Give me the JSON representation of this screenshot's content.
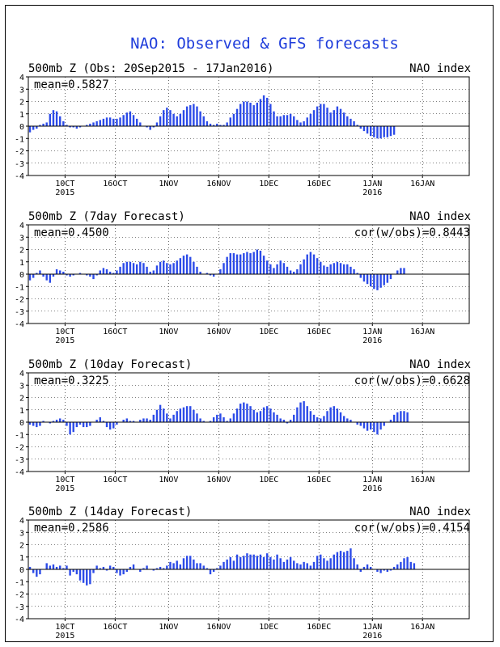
{
  "title": "NAO: Observed & GFS forecasts",
  "colors": {
    "bar": "#2c4be8",
    "title": "#1f3ddb",
    "grid": "#000000",
    "axis": "#000000"
  },
  "chart_data": [
    {
      "type": "bar",
      "panel_title": "500mb Z (Obs: 20Sep2015 - 17Jan2016)",
      "index_label": "NAO index",
      "mean_label": "mean=0.5827",
      "cor_label": "",
      "ylim": [
        -4,
        4
      ],
      "yticks": [
        "4",
        "3",
        "2",
        "1",
        "0",
        "-1",
        "-2",
        "-3",
        "-4"
      ],
      "x_start": "2015-09-20",
      "x_end": "2016-01-30",
      "xticks": [
        {
          "date": "2015-10-01",
          "label": "10CT",
          "sub": "2015"
        },
        {
          "date": "2015-10-16",
          "label": "16OCT",
          "sub": ""
        },
        {
          "date": "2015-11-01",
          "label": "1NOV",
          "sub": ""
        },
        {
          "date": "2015-11-16",
          "label": "16NOV",
          "sub": ""
        },
        {
          "date": "2015-12-01",
          "label": "1DEC",
          "sub": ""
        },
        {
          "date": "2015-12-16",
          "label": "16DEC",
          "sub": ""
        },
        {
          "date": "2016-01-01",
          "label": "1JAN",
          "sub": "2016"
        },
        {
          "date": "2016-01-16",
          "label": "16JAN",
          "sub": ""
        }
      ],
      "values": [
        -0.5,
        -0.3,
        -0.2,
        0.1,
        0.2,
        0.3,
        1,
        1.3,
        1.2,
        0.8,
        0.4,
        0.1,
        -0.1,
        -0.1,
        -0.2,
        -0.1,
        0,
        0.1,
        0.2,
        0.3,
        0.4,
        0.5,
        0.6,
        0.7,
        0.7,
        0.6,
        0.6,
        0.7,
        0.9,
        1.1,
        1.2,
        0.9,
        0.6,
        0.3,
        0,
        -0.1,
        -0.3,
        -0.1,
        0.3,
        0.8,
        1.3,
        1.5,
        1.3,
        1,
        0.8,
        1,
        1.3,
        1.6,
        1.7,
        1.8,
        1.6,
        1.2,
        0.8,
        0.4,
        0.2,
        0.1,
        0.2,
        0.1,
        0.1,
        0.3,
        0.7,
        1,
        1.4,
        1.8,
        2,
        2,
        1.9,
        1.7,
        1.9,
        2.2,
        2.5,
        2.3,
        1.8,
        1.2,
        0.8,
        0.8,
        0.9,
        0.9,
        1,
        0.8,
        0.5,
        0.3,
        0.4,
        0.7,
        1,
        1.3,
        1.6,
        1.8,
        1.8,
        1.5,
        1.1,
        1.3,
        1.6,
        1.4,
        1.1,
        0.8,
        0.6,
        0.4,
        0.1,
        -0.2,
        -0.4,
        -0.6,
        -0.8,
        -0.9,
        -1,
        -1,
        -0.9,
        -0.9,
        -0.8,
        -0.7
      ]
    },
    {
      "type": "bar",
      "panel_title": "500mb Z (7day Forecast)",
      "index_label": "NAO index",
      "mean_label": "mean=0.4500",
      "cor_label": "cor(w/obs)=0.8443",
      "ylim": [
        -4,
        4
      ],
      "yticks": [
        "4",
        "3",
        "2",
        "1",
        "0",
        "-1",
        "-2",
        "-3",
        "-4"
      ],
      "x_start": "2015-09-20",
      "x_end": "2016-01-30",
      "xticks": [
        {
          "date": "2015-10-01",
          "label": "10CT",
          "sub": "2015"
        },
        {
          "date": "2015-10-16",
          "label": "16OCT",
          "sub": ""
        },
        {
          "date": "2015-11-01",
          "label": "1NOV",
          "sub": ""
        },
        {
          "date": "2015-11-16",
          "label": "16NOV",
          "sub": ""
        },
        {
          "date": "2015-12-01",
          "label": "1DEC",
          "sub": ""
        },
        {
          "date": "2015-12-16",
          "label": "16DEC",
          "sub": ""
        },
        {
          "date": "2016-01-01",
          "label": "1JAN",
          "sub": "2016"
        },
        {
          "date": "2016-01-16",
          "label": "16JAN",
          "sub": ""
        }
      ],
      "values": [
        -0.5,
        -0.3,
        0.1,
        0.3,
        -0.2,
        -0.5,
        -0.7,
        -0.2,
        0.4,
        0.3,
        0.2,
        -0.1,
        -0.2,
        -0.1,
        0,
        0.1,
        0,
        -0.1,
        -0.2,
        -0.4,
        -0.1,
        0.3,
        0.5,
        0.4,
        0.2,
        0.1,
        0.3,
        0.6,
        0.9,
        1,
        1,
        0.9,
        0.8,
        1,
        0.9,
        0.6,
        0.2,
        0.3,
        0.7,
        1,
        1.1,
        0.9,
        0.8,
        0.9,
        1.1,
        1.3,
        1.5,
        1.6,
        1.4,
        1,
        0.6,
        0.2,
        0,
        0.1,
        -0.1,
        -0.2,
        0,
        0.4,
        0.9,
        1.4,
        1.7,
        1.7,
        1.6,
        1.6,
        1.7,
        1.8,
        1.7,
        1.8,
        2,
        1.9,
        1.5,
        1.1,
        0.8,
        0.5,
        0.8,
        1.1,
        0.9,
        0.6,
        0.3,
        0.2,
        0.4,
        0.8,
        1.2,
        1.6,
        1.8,
        1.6,
        1.3,
        1,
        0.7,
        0.6,
        0.8,
        0.9,
        1,
        0.9,
        0.8,
        0.8,
        0.6,
        0.4,
        0.1,
        -0.3,
        -0.6,
        -0.8,
        -1,
        -1.2,
        -1.3,
        -1.1,
        -0.9,
        -0.7,
        -0.4,
        0,
        0.3,
        0.5,
        0.5
      ]
    },
    {
      "type": "bar",
      "panel_title": "500mb Z (10day Forecast)",
      "index_label": "NAO index",
      "mean_label": "mean=0.3225",
      "cor_label": "cor(w/obs)=0.6628",
      "ylim": [
        -4,
        4
      ],
      "yticks": [
        "4",
        "3",
        "2",
        "1",
        "0",
        "-1",
        "-2",
        "-3",
        "-4"
      ],
      "x_start": "2015-09-20",
      "x_end": "2016-01-30",
      "xticks": [
        {
          "date": "2015-10-01",
          "label": "10CT",
          "sub": "2015"
        },
        {
          "date": "2015-10-16",
          "label": "16OCT",
          "sub": ""
        },
        {
          "date": "2015-11-01",
          "label": "1NOV",
          "sub": ""
        },
        {
          "date": "2015-11-16",
          "label": "16NOV",
          "sub": ""
        },
        {
          "date": "2015-12-01",
          "label": "1DEC",
          "sub": ""
        },
        {
          "date": "2015-12-16",
          "label": "16DEC",
          "sub": ""
        },
        {
          "date": "2016-01-01",
          "label": "1JAN",
          "sub": "2016"
        },
        {
          "date": "2016-01-16",
          "label": "16JAN",
          "sub": ""
        }
      ],
      "values": [
        -0.2,
        -0.3,
        -0.4,
        -0.3,
        0.1,
        0,
        -0.1,
        0.1,
        0.2,
        0.3,
        0.2,
        -0.3,
        -1,
        -0.8,
        -0.4,
        -0.2,
        -0.4,
        -0.4,
        -0.3,
        0,
        0.2,
        0.4,
        0.1,
        -0.4,
        -0.6,
        -0.5,
        -0.2,
        0,
        0.2,
        0.3,
        0.1,
        0.1,
        0,
        0.2,
        0.3,
        0.3,
        0.2,
        0.6,
        1,
        1.4,
        1.1,
        0.7,
        0.3,
        0.6,
        0.9,
        1.1,
        1.2,
        1.3,
        1.3,
        1,
        0.7,
        0.3,
        0.1,
        0,
        0.1,
        0.4,
        0.6,
        0.7,
        0.4,
        0.1,
        0.3,
        0.7,
        1.1,
        1.5,
        1.6,
        1.5,
        1.3,
        1,
        0.8,
        0.9,
        1.2,
        1.3,
        1.1,
        0.8,
        0.6,
        0.3,
        0.2,
        -0.1,
        0.2,
        0.6,
        1.2,
        1.6,
        1.7,
        1.3,
        0.9,
        0.6,
        0.4,
        0.3,
        0.5,
        0.9,
        1.2,
        1.3,
        1.1,
        0.8,
        0.5,
        0.3,
        0.2,
        0,
        -0.2,
        -0.3,
        -0.5,
        -0.7,
        -0.6,
        -0.8,
        -1,
        -0.6,
        -0.3,
        0,
        0.2,
        0.6,
        0.8,
        0.9,
        0.9,
        0.8
      ]
    },
    {
      "type": "bar",
      "panel_title": "500mb Z (14day Forecast)",
      "index_label": "NAO index",
      "mean_label": "mean=0.2586",
      "cor_label": "cor(w/obs)=0.4154",
      "ylim": [
        -4,
        4
      ],
      "yticks": [
        "4",
        "3",
        "2",
        "1",
        "0",
        "-1",
        "-2",
        "-3",
        "-4"
      ],
      "x_start": "2015-09-20",
      "x_end": "2016-01-30",
      "xticks": [
        {
          "date": "2015-10-01",
          "label": "10CT",
          "sub": "2015"
        },
        {
          "date": "2015-10-16",
          "label": "16OCT",
          "sub": ""
        },
        {
          "date": "2015-11-01",
          "label": "1NOV",
          "sub": ""
        },
        {
          "date": "2015-11-16",
          "label": "16NOV",
          "sub": ""
        },
        {
          "date": "2015-12-01",
          "label": "1DEC",
          "sub": ""
        },
        {
          "date": "2015-12-16",
          "label": "16DEC",
          "sub": ""
        },
        {
          "date": "2016-01-01",
          "label": "1JAN",
          "sub": "2016"
        },
        {
          "date": "2016-01-16",
          "label": "16JAN",
          "sub": ""
        }
      ],
      "values": [
        0.2,
        -0.3,
        -0.6,
        -0.4,
        0,
        0.5,
        0.3,
        0.4,
        0.2,
        0.3,
        0.1,
        0.3,
        -0.5,
        -0.2,
        -0.4,
        -0.9,
        -1.1,
        -1.3,
        -1.2,
        -0.3,
        0.3,
        0.1,
        0.2,
        -0.1,
        0.3,
        0.2,
        -0.3,
        -0.5,
        -0.4,
        -0.2,
        0.2,
        0.4,
        0,
        -0.2,
        0.1,
        0.3,
        0,
        -0.1,
        0.1,
        0.2,
        0.1,
        0.3,
        0.6,
        0.5,
        0.7,
        0.4,
        0.9,
        1.1,
        1.1,
        0.8,
        0.5,
        0.5,
        0.3,
        0.1,
        -0.4,
        -0.2,
        0.1,
        0.3,
        0.6,
        0.8,
        1,
        0.7,
        1.2,
        1,
        1.1,
        1.3,
        1.2,
        1.2,
        1.1,
        1.2,
        1,
        1.3,
        1,
        0.8,
        1.2,
        0.9,
        0.6,
        0.8,
        1,
        0.7,
        0.5,
        0.4,
        0.6,
        0.5,
        0.3,
        0.6,
        1.1,
        1.2,
        0.9,
        0.7,
        0.9,
        1.2,
        1.4,
        1.5,
        1.4,
        1.5,
        1.7,
        0.9,
        0.4,
        -0.2,
        0.2,
        0.4,
        0.2,
        0,
        -0.2,
        -0.3,
        -0.1,
        -0.2,
        -0.1,
        0.2,
        0.4,
        0.6,
        0.9,
        1,
        0.6,
        0.5
      ]
    }
  ]
}
